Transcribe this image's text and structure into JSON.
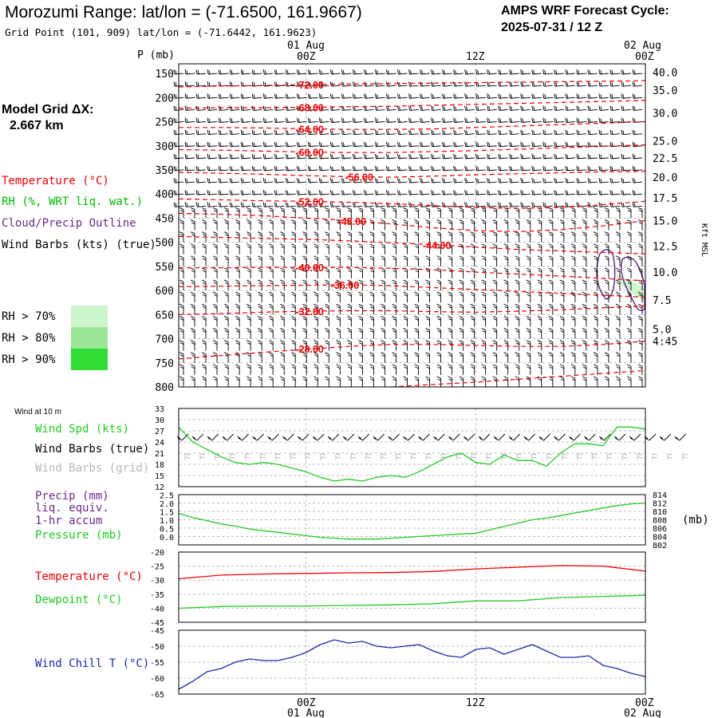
{
  "header": {
    "title": "Morozumi Range:  lat/lon = (-71.6500, 161.9667)",
    "subtitle": "Grid Point (101, 909) lat/lon = (-71.6442, 161.9623)",
    "cycle_line1": "AMPS WRF Forecast Cycle:",
    "cycle_line2": "2025-07-31 / 12  Z"
  },
  "left_panel": {
    "grid_title": "Model Grid ΔX:",
    "grid_value": "2.667 km",
    "legend_temperature": "Temperature (°C)",
    "legend_rh": "RH (%, WRT liq. wat.)",
    "legend_cloud": "Cloud/Precip Outline",
    "legend_wind": "Wind Barbs (kts) (true)",
    "rh_70": "RH > 70%",
    "rh_80": "RH > 80%",
    "rh_90": "RH > 90%"
  },
  "colors": {
    "temperature": "#ee0000",
    "rh_label": "#00bb00",
    "cloud": "#6a2a8a",
    "wind_speed": "#22cc22",
    "dewpoint": "#22cc22",
    "wind_chill": "#1a2aa8",
    "grid_barbs": "#b8b8b8",
    "rh_70": "#ccf5cc",
    "rh_80": "#99e699",
    "rh_90": "#33dd33"
  },
  "time_axis": {
    "top_dates": [
      "01 Aug",
      "02 Aug"
    ],
    "bottom_dates": [
      "01 Aug",
      "02 Aug"
    ],
    "hours": [
      "00Z",
      "12Z",
      "00Z"
    ]
  },
  "chart_data": [
    {
      "type": "line",
      "title": "",
      "ylabel": "P (mb)",
      "right_label": "Kft MSL",
      "y_ticks": [
        150,
        200,
        250,
        300,
        350,
        400,
        450,
        500,
        550,
        600,
        650,
        700,
        750,
        800
      ],
      "ylim": [
        800,
        130
      ],
      "right_ticks": [
        "40.0",
        "35.0",
        "30.0",
        "25.0",
        "22.5",
        "20.0",
        "17.5",
        "15.0",
        "12.5",
        "10.0",
        "7.5",
        "5.0",
        "4:45"
      ],
      "right_tick_pressures": [
        147,
        185,
        232,
        290,
        325,
        365,
        408,
        455,
        508,
        562,
        620,
        680,
        705
      ],
      "x_hours_from_start": [
        0,
        12,
        24
      ],
      "xlim": [
        -9,
        24
      ],
      "isotherms": [
        {
          "label": "-72.00",
          "x": [
            -9,
            -6,
            -3,
            0,
            3,
            6,
            9,
            12,
            15,
            18,
            21,
            24
          ],
          "p": [
            178,
            176,
            175,
            173,
            172,
            171,
            170,
            169,
            168,
            167,
            166,
            165
          ]
        },
        {
          "label": "-68.00",
          "x": [
            -9,
            -6,
            -3,
            0,
            3,
            6,
            9,
            12,
            15,
            18,
            21,
            24
          ],
          "p": [
            222,
            221,
            221,
            220,
            219,
            218,
            216,
            214,
            212,
            210,
            208,
            206
          ]
        },
        {
          "label": "-64.00",
          "x": [
            -9,
            -6,
            -3,
            0,
            3,
            6,
            9,
            12,
            15,
            18,
            21,
            24
          ],
          "p": [
            262,
            262,
            263,
            265,
            266,
            266,
            265,
            262,
            259,
            256,
            253,
            250
          ]
        },
        {
          "label": "-60.00",
          "x": [
            -9,
            -6,
            -3,
            0,
            3,
            6,
            9,
            12,
            15,
            18,
            21,
            24
          ],
          "p": [
            308,
            309,
            311,
            313,
            314,
            314,
            312,
            310,
            307,
            304,
            301,
            298
          ]
        },
        {
          "label": "-56.00",
          "x": [
            -9,
            -6,
            -3,
            0,
            3,
            6,
            9,
            12,
            15,
            18,
            21,
            24
          ],
          "p": [
            355,
            357,
            359,
            362,
            364,
            365,
            363,
            360,
            358,
            356,
            354,
            353
          ]
        },
        {
          "label": "-52.00",
          "x": [
            -9,
            -6,
            -3,
            0,
            3,
            6,
            9,
            12,
            15,
            18,
            21,
            24
          ],
          "p": [
            410,
            412,
            414,
            415,
            417,
            420,
            424,
            428,
            430,
            428,
            422,
            415
          ]
        },
        {
          "label": "-48.00",
          "x": [
            -9,
            -6,
            -3,
            0,
            3,
            6,
            9,
            12,
            15,
            18,
            21,
            24
          ],
          "p": [
            440,
            442,
            445,
            450,
            455,
            462,
            470,
            476,
            478,
            474,
            466,
            455
          ]
        },
        {
          "label": "-44.00",
          "x": [
            -9,
            -6,
            -3,
            0,
            3,
            6,
            9,
            12,
            15,
            18,
            21,
            24
          ],
          "p": [
            488,
            490,
            492,
            494,
            497,
            501,
            505,
            510,
            515,
            518,
            521,
            524
          ]
        },
        {
          "label": "-40.00",
          "x": [
            -9,
            -6,
            -3,
            0,
            3,
            6,
            9,
            12,
            15,
            18,
            21,
            24
          ],
          "p": [
            553,
            553,
            552,
            552,
            552,
            554,
            557,
            562,
            566,
            570,
            575,
            580
          ]
        },
        {
          "label": "-36.00",
          "x": [
            -9,
            -6,
            -3,
            0,
            3,
            6,
            9,
            12,
            15,
            18,
            21,
            24
          ],
          "p": [
            592,
            591,
            590,
            589,
            588,
            590,
            594,
            598,
            602,
            606,
            610,
            614
          ]
        },
        {
          "label": "-32.00",
          "x": [
            -9,
            -6,
            -3,
            0,
            3,
            6,
            9,
            12,
            15,
            18,
            21,
            24
          ],
          "p": [
            650,
            648,
            645,
            643,
            642,
            642,
            644,
            645,
            643,
            640,
            636,
            632
          ]
        },
        {
          "label": "-28.00",
          "x": [
            -9,
            -6,
            -3,
            0,
            3,
            6,
            9,
            12,
            15,
            18,
            21,
            24
          ],
          "p": [
            742,
            735,
            728,
            722,
            716,
            712,
            712,
            714,
            716,
            716,
            712,
            705
          ]
        },
        {
          "label": "",
          "x": [
            6,
            9,
            12,
            15,
            18,
            21,
            24
          ],
          "p": [
            800,
            795,
            790,
            784,
            778,
            772,
            766
          ]
        }
      ],
      "wind_barb_pressures": [
        150,
        175,
        200,
        225,
        250,
        275,
        300,
        325,
        350,
        375,
        400,
        425,
        450,
        475,
        500,
        525,
        550,
        575,
        600,
        625,
        650,
        675,
        700,
        725,
        750,
        775,
        800
      ]
    },
    {
      "type": "line",
      "title": "Wind at 10 m",
      "series": [
        {
          "name": "Wind Spd (kts)",
          "x": [
            -9,
            -8,
            -7,
            -6,
            -5,
            -4,
            -3,
            -2,
            -1,
            0,
            1,
            2,
            3,
            4,
            5,
            6,
            7,
            8,
            9,
            10,
            11,
            12,
            13,
            14,
            15,
            16,
            17,
            18,
            19,
            20,
            21,
            22,
            23,
            24
          ],
          "values": [
            28,
            24,
            22,
            20,
            18.5,
            18,
            18.5,
            18,
            17,
            16,
            14.5,
            13.5,
            14,
            13.5,
            14.5,
            15,
            14.5,
            16,
            18,
            20,
            21,
            18.5,
            18,
            20.5,
            19,
            19,
            17.5,
            21,
            23.5,
            23.5,
            23,
            28,
            28,
            27.5
          ]
        }
      ],
      "legend": [
        "Wind Spd (kts)",
        "Wind Barbs (true)",
        "Wind Barbs (grid)"
      ],
      "ylim": [
        12,
        33
      ],
      "y_ticks": [
        12,
        15,
        18,
        21,
        24,
        27,
        30,
        33
      ]
    },
    {
      "type": "line",
      "series": [
        {
          "name": "Pressure (mb)",
          "x": [
            -9,
            -8,
            -7,
            -6,
            -5,
            -4,
            -3,
            -2,
            -1,
            0,
            1,
            2,
            3,
            4,
            5,
            6,
            7,
            8,
            9,
            10,
            11,
            12,
            13,
            14,
            15,
            16,
            17,
            18,
            19,
            20,
            21,
            22,
            23,
            24
          ],
          "values": [
            809.5,
            808.5,
            807.8,
            807,
            806.5,
            805.8,
            805.4,
            805,
            804.6,
            804.2,
            803.8,
            803.6,
            803.4,
            803.4,
            803.4,
            803.6,
            803.8,
            804,
            804.2,
            804.4,
            804.6,
            804.8,
            805.6,
            806.4,
            807.2,
            808,
            808.4,
            809,
            809.6,
            810.2,
            810.8,
            811.4,
            811.8,
            812
          ]
        }
      ],
      "legend": [
        "Precip (mm)",
        "liq. equiv.",
        "1-hr accum",
        "Pressure (mb)"
      ],
      "right_label": "(mb)",
      "y_left_ticks": [
        "0.0",
        "0.5",
        "1.0",
        "1.5",
        "2.0",
        "2.5"
      ],
      "y_right_ticks": [
        802,
        804,
        806,
        808,
        810,
        812,
        814
      ],
      "ylim": [
        802,
        814
      ]
    },
    {
      "type": "line",
      "series": [
        {
          "name": "Temperature (°C)",
          "x": [
            -9,
            -6,
            -3,
            0,
            3,
            6,
            9,
            12,
            15,
            18,
            21,
            24
          ],
          "values": [
            -29.5,
            -28.2,
            -27.8,
            -27.6,
            -27.4,
            -27.3,
            -26.9,
            -26,
            -25.4,
            -24.8,
            -25,
            -26.8
          ]
        },
        {
          "name": "Dewpoint (°C)",
          "x": [
            -9,
            -6,
            -3,
            0,
            3,
            6,
            9,
            12,
            15,
            18,
            21,
            24
          ],
          "values": [
            -40,
            -39.4,
            -39.2,
            -39.2,
            -39,
            -38.8,
            -38.4,
            -37.4,
            -37.4,
            -36.2,
            -35.8,
            -35.4
          ]
        }
      ],
      "ylim": [
        -45,
        -20
      ],
      "y_ticks": [
        -20,
        -25,
        -30,
        -35,
        -40,
        -45
      ]
    },
    {
      "type": "line",
      "series": [
        {
          "name": "Wind Chill T (°C)",
          "x": [
            -9,
            -8,
            -7,
            -6,
            -5,
            -4,
            -3,
            -2,
            -1,
            0,
            1,
            2,
            3,
            4,
            5,
            6,
            7,
            8,
            9,
            10,
            11,
            12,
            13,
            14,
            15,
            16,
            17,
            18,
            19,
            20,
            21,
            22,
            23,
            24
          ],
          "values": [
            -63.5,
            -61,
            -58,
            -57,
            -55,
            -54,
            -54.5,
            -54.5,
            -53.5,
            -52,
            -49.5,
            -48,
            -49,
            -48.5,
            -50,
            -50.5,
            -50,
            -49.5,
            -51.5,
            -53,
            -53.5,
            -51,
            -50.5,
            -52.5,
            -51,
            -49.5,
            -51.5,
            -53.5,
            -53.5,
            -53,
            -56,
            -57,
            -58.5,
            -59.5
          ]
        }
      ],
      "ylim": [
        -65,
        -45
      ],
      "y_ticks": [
        -45,
        -50,
        -55,
        -60,
        -65
      ]
    }
  ]
}
